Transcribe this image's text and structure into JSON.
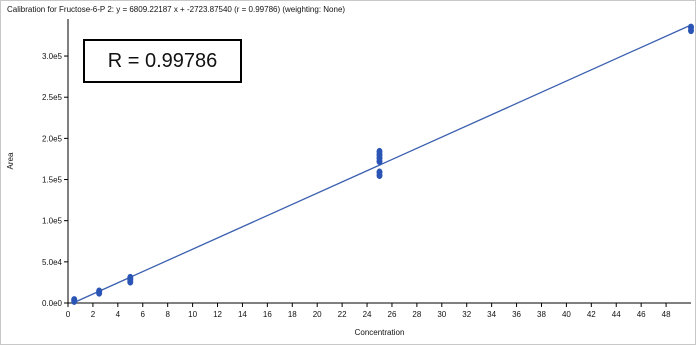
{
  "chart_data": {
    "type": "scatter",
    "title": "Calibration for Fructose-6-P 2: y = 6809.22187 x + -2723.87540 (r = 0.99786)  (weighting: None)",
    "annotation": "R = 0.99786",
    "xlabel": "Concentration",
    "ylabel": "Area",
    "xlim": [
      0,
      50
    ],
    "ylim": [
      0,
      345000
    ],
    "x_ticks": [
      0,
      2,
      4,
      6,
      8,
      10,
      12,
      14,
      16,
      18,
      20,
      22,
      24,
      26,
      28,
      30,
      32,
      34,
      36,
      38,
      40,
      42,
      44,
      46,
      48
    ],
    "x_tick_labels": [
      "0",
      "2",
      "4",
      "6",
      "8",
      "10",
      "12",
      "14",
      "16",
      "18",
      "20",
      "22",
      "24",
      "26",
      "28",
      "30",
      "32",
      "34",
      "36",
      "38",
      "40",
      "42",
      "44",
      "46",
      "48"
    ],
    "y_ticks": [
      0,
      50000,
      100000,
      150000,
      200000,
      250000,
      300000
    ],
    "y_tick_labels": [
      "0.0e0",
      "5.0e4",
      "1.0e5",
      "1.5e5",
      "2.0e5",
      "2.5e5",
      "3.0e5"
    ],
    "fit": {
      "slope": 6809.22187,
      "intercept": -2723.8754,
      "x_range": [
        0.4,
        50
      ]
    },
    "points": [
      {
        "x": 0.5,
        "y": 2000
      },
      {
        "x": 0.5,
        "y": 4000
      },
      {
        "x": 2.5,
        "y": 12000
      },
      {
        "x": 2.5,
        "y": 14500
      },
      {
        "x": 5,
        "y": 25500
      },
      {
        "x": 5,
        "y": 28500
      },
      {
        "x": 5,
        "y": 31000
      },
      {
        "x": 25,
        "y": 155000
      },
      {
        "x": 25,
        "y": 159000
      },
      {
        "x": 25,
        "y": 172000
      },
      {
        "x": 25,
        "y": 176000
      },
      {
        "x": 25,
        "y": 180000
      },
      {
        "x": 25,
        "y": 184000
      },
      {
        "x": 50,
        "y": 331000
      },
      {
        "x": 50,
        "y": 335000
      }
    ],
    "grid": false,
    "colors": {
      "line": "#3a5fb0",
      "points": "#2a55b5",
      "axis": "#000000"
    }
  }
}
